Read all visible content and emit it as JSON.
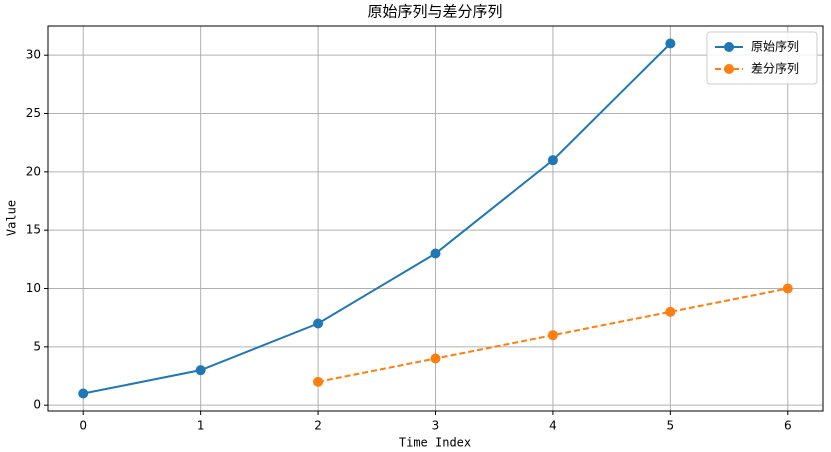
{
  "chart_data": {
    "type": "line",
    "title": "原始序列与差分序列",
    "x_label": "Time Index",
    "y_label": "Value",
    "x": [
      0,
      1,
      2,
      3,
      4,
      5,
      6
    ],
    "series": [
      {
        "name": "原始序列",
        "color": "#1f77b4",
        "linestyle": "solid",
        "values": [
          1,
          3,
          7,
          13,
          21,
          31,
          null
        ]
      },
      {
        "name": "差分序列",
        "color": "#ff7f0e",
        "linestyle": "dashed",
        "values": [
          null,
          null,
          2,
          4,
          6,
          8,
          10
        ]
      }
    ],
    "xlim": [
      -0.3,
      6.3
    ],
    "xticks": [
      0,
      1,
      2,
      3,
      4,
      5,
      6
    ],
    "ylim": [
      -0.5,
      32.5
    ],
    "yticks": [
      0,
      5,
      10,
      15,
      20,
      25,
      30
    ],
    "grid": true,
    "legend": "upper right"
  }
}
